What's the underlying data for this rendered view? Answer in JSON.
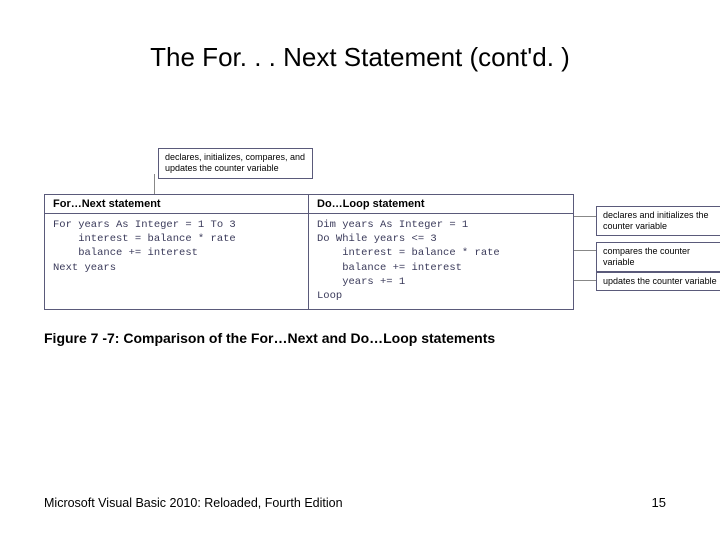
{
  "title": "The For. . . Next Statement (cont'd. )",
  "diagram": {
    "top_label": "declares, initializes, compares,\nand updates the counter variable",
    "headers": {
      "left": "For…Next statement",
      "right": "Do…Loop statement"
    },
    "code_left": "For years As Integer = 1 To 3\n    interest = balance * rate\n    balance += interest\nNext years",
    "code_right": "Dim years As Integer = 1\nDo While years <= 3\n    interest = balance * rate\n    balance += interest\n    years += 1\nLoop",
    "right_labels": {
      "b1": "declares and initializes\nthe counter variable",
      "b2": "compares the counter variable",
      "b3": "updates the counter variable"
    }
  },
  "caption": "Figure 7 -7: Comparison of the For…Next and Do…Loop statements",
  "footer": {
    "left": "Microsoft Visual Basic 2010: Reloaded, Fourth Edition",
    "page": "15"
  },
  "colors": {
    "border": "#5a5a7a",
    "code_text": "#3a3a5a"
  }
}
